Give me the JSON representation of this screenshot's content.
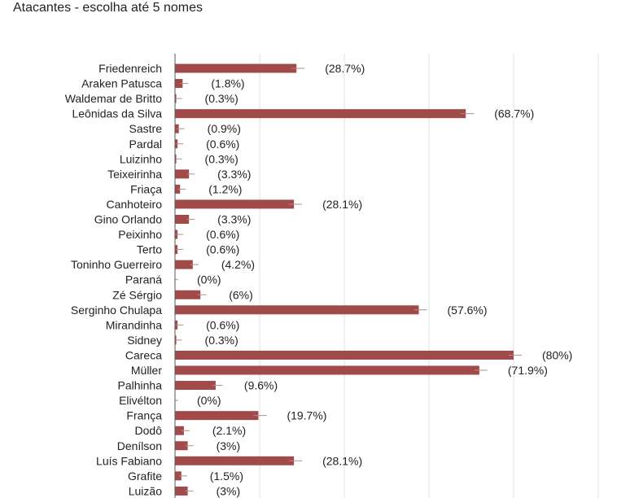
{
  "chart_data": {
    "type": "bar",
    "orientation": "horizontal",
    "title": "Atacantes - escolha até 5 nomes",
    "xlim": [
      0,
      100
    ],
    "grid": true,
    "bar_color": "#a04a4a",
    "categories": [
      "Friedenreich",
      "Araken Patusca",
      "Waldemar de Britto",
      "Leônidas da Silva",
      "Sastre",
      "Pardal",
      "Luizinho",
      "Teixeirinha",
      "Friaça",
      "Canhoteiro",
      "Gino Orlando",
      "Peixinho",
      "Terto",
      "Toninho Guerreiro",
      "Paraná",
      "Zé Sérgio",
      "Serginho Chulapa",
      "Mirandinha",
      "Sidney",
      "Careca",
      "Müller",
      "Palhinha",
      "Elivélton",
      "França",
      "Dodô",
      "Denílson",
      "Luís Fabiano",
      "Grafite",
      "Luizão"
    ],
    "values": [
      28.7,
      1.8,
      0.3,
      68.7,
      0.9,
      0.6,
      0.3,
      3.3,
      1.2,
      28.1,
      3.3,
      0.6,
      0.6,
      4.2,
      0,
      6,
      57.6,
      0.6,
      0.3,
      80,
      71.9,
      9.6,
      0,
      19.7,
      2.1,
      3,
      28.1,
      1.5,
      3
    ],
    "data_labels": [
      "(28.7%)",
      "(1.8%)",
      "(0.3%)",
      "(68.7%)",
      "(0.9%)",
      "(0.6%)",
      "(0.3%)",
      "(3.3%)",
      "(1.2%)",
      "(28.1%)",
      "(3.3%)",
      "(0.6%)",
      "(0.6%)",
      "(4.2%)",
      "(0%)",
      "(6%)",
      "(57.6%)",
      "(0.6%)",
      "(0.3%)",
      "(80%)",
      "(71.9%)",
      "(9.6%)",
      "(0%)",
      "(19.7%)",
      "(2.1%)",
      "(3%)",
      "(28.1%)",
      "(1.5%)",
      "(3%)"
    ]
  }
}
